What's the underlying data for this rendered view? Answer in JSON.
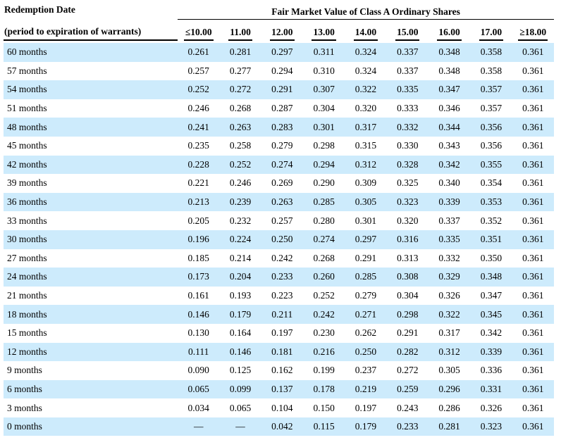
{
  "table": {
    "title_left": "Redemption Date",
    "subtitle_left": "(period to expiration of warrants)",
    "group_header": "Fair Market Value of Class A Ordinary Shares",
    "price_headers": [
      "≤10.00",
      "11.00",
      "12.00",
      "13.00",
      "14.00",
      "15.00",
      "16.00",
      "17.00",
      "≥18.00"
    ],
    "rows": [
      {
        "label": "60 months",
        "values": [
          "0.261",
          "0.281",
          "0.297",
          "0.311",
          "0.324",
          "0.337",
          "0.348",
          "0.358",
          "0.361"
        ]
      },
      {
        "label": "57 months",
        "values": [
          "0.257",
          "0.277",
          "0.294",
          "0.310",
          "0.324",
          "0.337",
          "0.348",
          "0.358",
          "0.361"
        ]
      },
      {
        "label": "54 months",
        "values": [
          "0.252",
          "0.272",
          "0.291",
          "0.307",
          "0.322",
          "0.335",
          "0.347",
          "0.357",
          "0.361"
        ]
      },
      {
        "label": "51 months",
        "values": [
          "0.246",
          "0.268",
          "0.287",
          "0.304",
          "0.320",
          "0.333",
          "0.346",
          "0.357",
          "0.361"
        ]
      },
      {
        "label": "48 months",
        "values": [
          "0.241",
          "0.263",
          "0.283",
          "0.301",
          "0.317",
          "0.332",
          "0.344",
          "0.356",
          "0.361"
        ]
      },
      {
        "label": "45 months",
        "values": [
          "0.235",
          "0.258",
          "0.279",
          "0.298",
          "0.315",
          "0.330",
          "0.343",
          "0.356",
          "0.361"
        ]
      },
      {
        "label": "42 months",
        "values": [
          "0.228",
          "0.252",
          "0.274",
          "0.294",
          "0.312",
          "0.328",
          "0.342",
          "0.355",
          "0.361"
        ]
      },
      {
        "label": "39 months",
        "values": [
          "0.221",
          "0.246",
          "0.269",
          "0.290",
          "0.309",
          "0.325",
          "0.340",
          "0.354",
          "0.361"
        ]
      },
      {
        "label": "36 months",
        "values": [
          "0.213",
          "0.239",
          "0.263",
          "0.285",
          "0.305",
          "0.323",
          "0.339",
          "0.353",
          "0.361"
        ]
      },
      {
        "label": "33 months",
        "values": [
          "0.205",
          "0.232",
          "0.257",
          "0.280",
          "0.301",
          "0.320",
          "0.337",
          "0.352",
          "0.361"
        ]
      },
      {
        "label": "30 months",
        "values": [
          "0.196",
          "0.224",
          "0.250",
          "0.274",
          "0.297",
          "0.316",
          "0.335",
          "0.351",
          "0.361"
        ]
      },
      {
        "label": "27 months",
        "values": [
          "0.185",
          "0.214",
          "0.242",
          "0.268",
          "0.291",
          "0.313",
          "0.332",
          "0.350",
          "0.361"
        ]
      },
      {
        "label": "24 months",
        "values": [
          "0.173",
          "0.204",
          "0.233",
          "0.260",
          "0.285",
          "0.308",
          "0.329",
          "0.348",
          "0.361"
        ]
      },
      {
        "label": "21 months",
        "values": [
          "0.161",
          "0.193",
          "0.223",
          "0.252",
          "0.279",
          "0.304",
          "0.326",
          "0.347",
          "0.361"
        ]
      },
      {
        "label": "18 months",
        "values": [
          "0.146",
          "0.179",
          "0.211",
          "0.242",
          "0.271",
          "0.298",
          "0.322",
          "0.345",
          "0.361"
        ]
      },
      {
        "label": "15 months",
        "values": [
          "0.130",
          "0.164",
          "0.197",
          "0.230",
          "0.262",
          "0.291",
          "0.317",
          "0.342",
          "0.361"
        ]
      },
      {
        "label": "12 months",
        "values": [
          "0.111",
          "0.146",
          "0.181",
          "0.216",
          "0.250",
          "0.282",
          "0.312",
          "0.339",
          "0.361"
        ]
      },
      {
        "label": "9 months",
        "values": [
          "0.090",
          "0.125",
          "0.162",
          "0.199",
          "0.237",
          "0.272",
          "0.305",
          "0.336",
          "0.361"
        ]
      },
      {
        "label": "6 months",
        "values": [
          "0.065",
          "0.099",
          "0.137",
          "0.178",
          "0.219",
          "0.259",
          "0.296",
          "0.331",
          "0.361"
        ]
      },
      {
        "label": "3 months",
        "values": [
          "0.034",
          "0.065",
          "0.104",
          "0.150",
          "0.197",
          "0.243",
          "0.286",
          "0.326",
          "0.361"
        ]
      },
      {
        "label": "0 months",
        "values": [
          "—",
          "—",
          "0.042",
          "0.115",
          "0.179",
          "0.233",
          "0.281",
          "0.323",
          "0.361"
        ]
      }
    ],
    "colors": {
      "row_highlight": "#CDEBFC",
      "text": "#000000",
      "rule": "#000000"
    }
  }
}
